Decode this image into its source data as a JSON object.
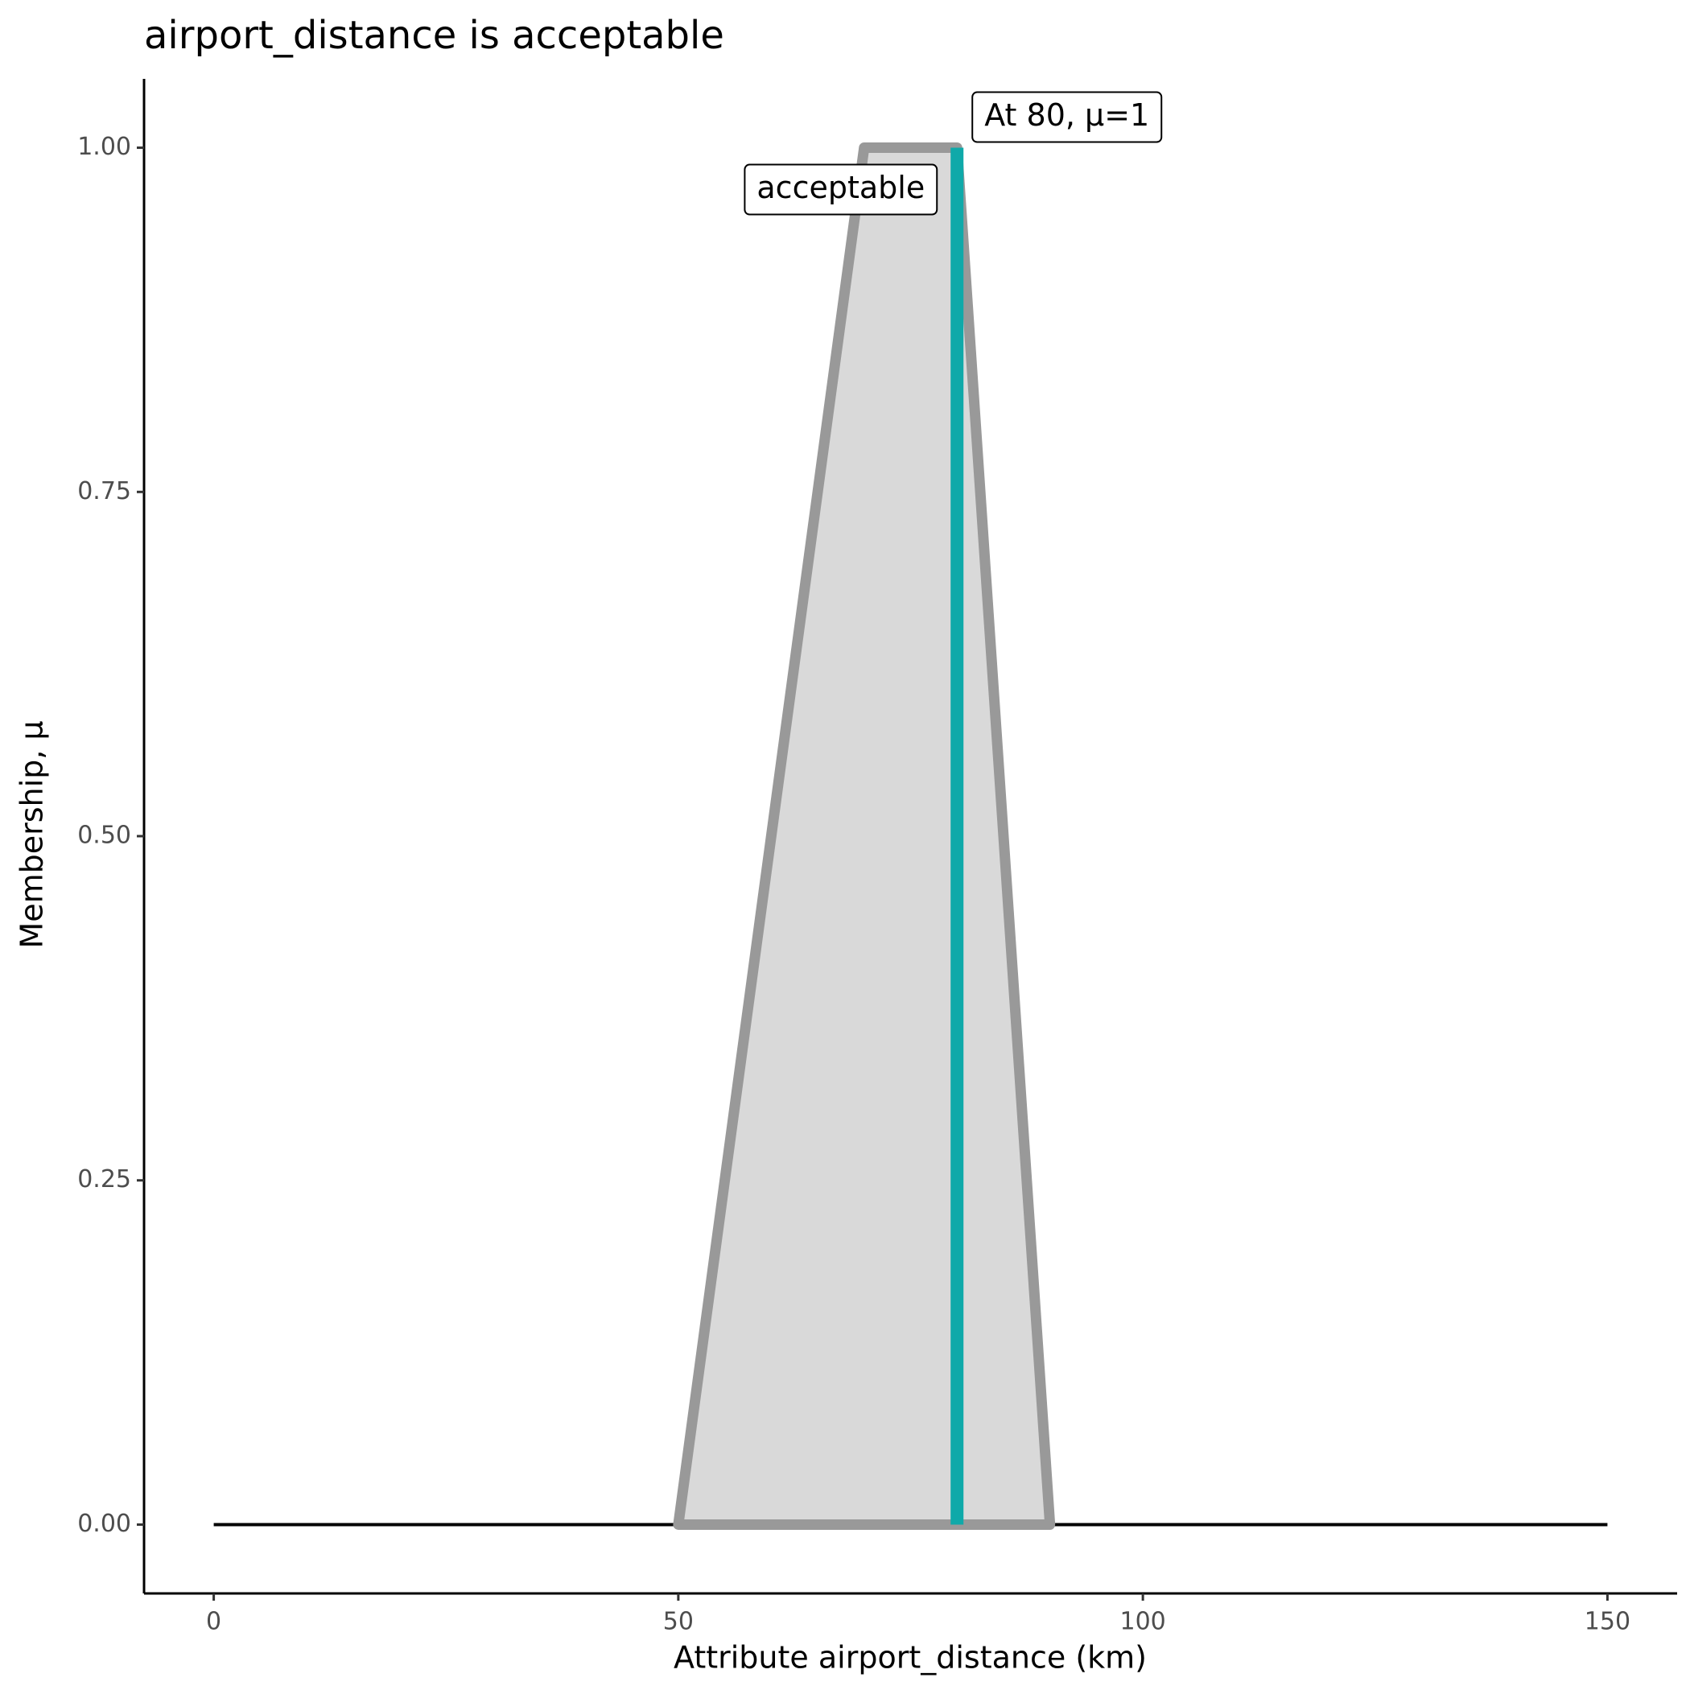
{
  "chart_data": {
    "type": "area",
    "title": "airport_distance is acceptable",
    "xlabel": "Attribute airport_distance (km)",
    "ylabel": "Membership, μ",
    "xlim": [
      -7.5,
      157.5
    ],
    "ylim": [
      -0.05,
      1.05
    ],
    "xticks": [
      0,
      50,
      100,
      150
    ],
    "yticks": [
      {
        "value": 0,
        "label": "0.00"
      },
      {
        "value": 0.25,
        "label": "0.25"
      },
      {
        "value": 0.5,
        "label": "0.50"
      },
      {
        "value": 0.75,
        "label": "0.75"
      },
      {
        "value": 1,
        "label": "1.00"
      }
    ],
    "series": [
      {
        "name": "acceptable",
        "x": [
          50,
          70,
          80,
          90
        ],
        "values": [
          0,
          1,
          1,
          0
        ],
        "color": "#999999",
        "fill": "#d9d9d9"
      }
    ],
    "baseline": {
      "x": [
        0,
        150
      ],
      "values": [
        0,
        0
      ],
      "color": "#000000"
    },
    "marker": {
      "label": "At 80, μ=1",
      "x": 80,
      "value": 1,
      "color": "#0fa9a9"
    }
  }
}
